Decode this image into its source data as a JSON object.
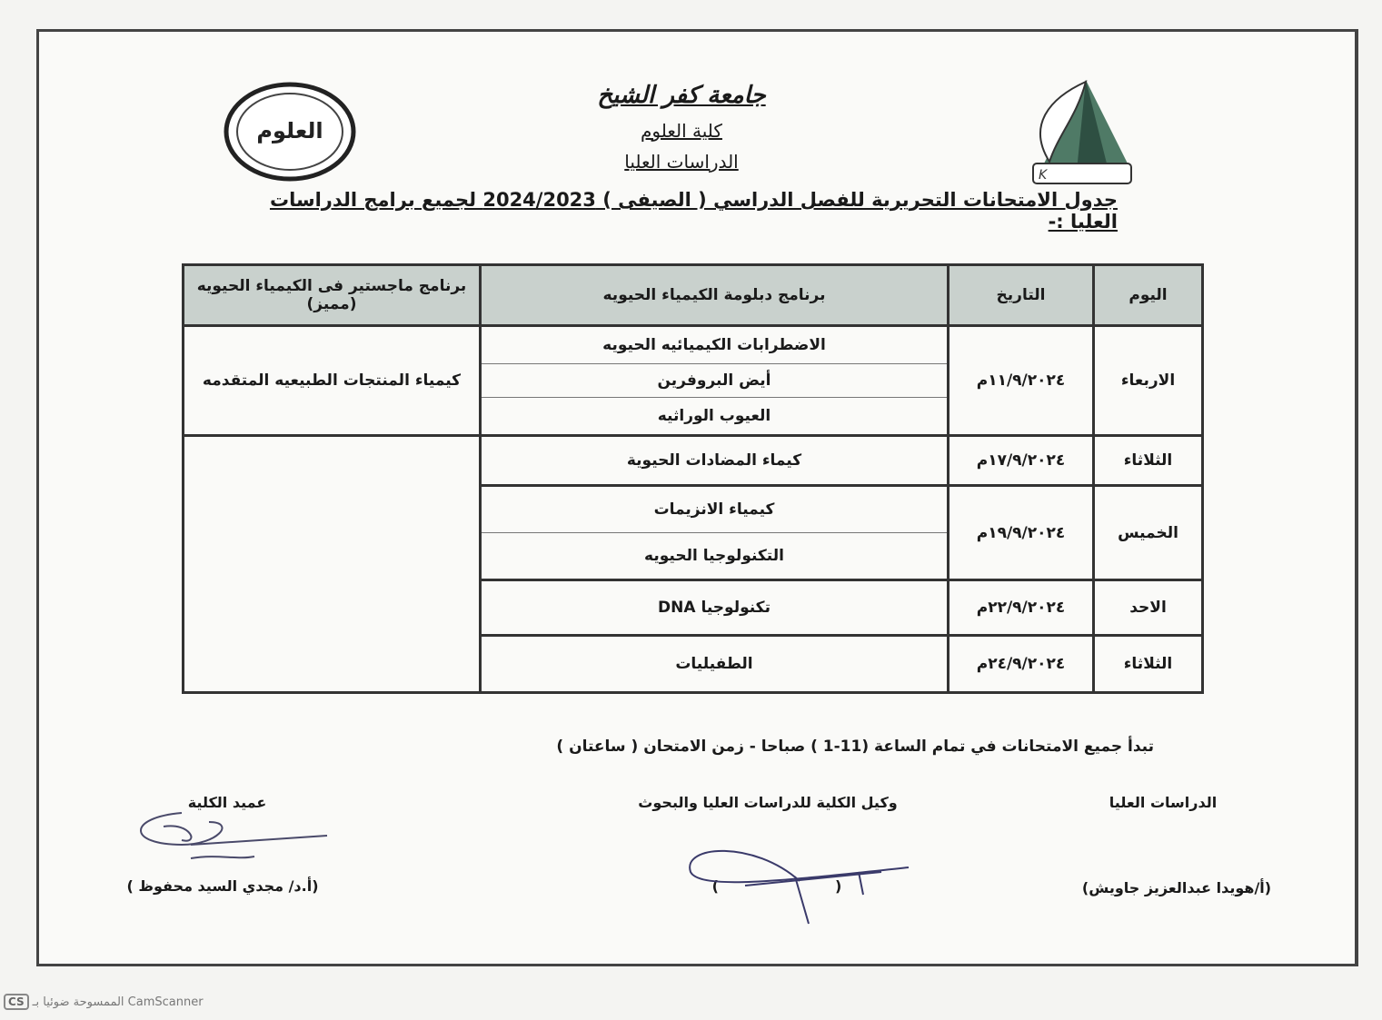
{
  "header": {
    "university": "جامعة كفر الشيخ",
    "faculty": "كلية العلوم",
    "department": "الدراسات العليا",
    "title": "جدول الامتحانات التحريرية للفصل الدراسي ( الصيفى ) 2024/2023  لجميع برامج الدراسات العليا :-",
    "logo_text": "العلوم"
  },
  "table": {
    "headers": {
      "day": "اليوم",
      "date": "التاريخ",
      "diploma": "برنامج دبلومة الكيمياء الحيويه",
      "masters": "برنامج  ماجستير فى الكيمياء الحيويه (مميز)"
    },
    "rows": [
      {
        "day": "الاربعاء",
        "date": "١١/٩/٢٠٢٤م",
        "subjects": [
          "الاضطرابات الكيميائيه الحيويه",
          "أيض البروفرين",
          "العيوب الوراثيه"
        ],
        "masters": "كيمياء المنتجات الطبيعيه المتقدمه"
      },
      {
        "day": "الثلاثاء",
        "date": "١٧/٩/٢٠٢٤م",
        "subjects": [
          "كيماء المضادات الحيوية"
        ]
      },
      {
        "day": "الخميس",
        "date": "١٩/٩/٢٠٢٤م",
        "subjects": [
          "كيمياء الانزيمات",
          "التكنولوجيا الحيويه"
        ]
      },
      {
        "day": "الاحد",
        "date": "٢٢/٩/٢٠٢٤م",
        "subjects": [
          "تكنولوجيا DNA"
        ]
      },
      {
        "day": "الثلاثاء",
        "date": "٢٤/٩/٢٠٢٤م",
        "subjects": [
          "الطفيليات"
        ]
      }
    ]
  },
  "note": "تبدأ جميع الامتحانات في تمام الساعة (11-1 )  صباحا -  زمن الامتحان ( ساعتان )",
  "signatures": {
    "right_title": "الدراسات العليا",
    "right_name": "(أ/هويدا عبدالعزيز جاويش)",
    "middle_title": "وكيل الكلية للدراسات العليا والبحوث",
    "middle_name": "(                       )",
    "left_title": "عميد الكلية",
    "left_name": "(أ.د/ مجدي السيد محفوظ )"
  },
  "watermark": {
    "badge": "CS",
    "text": "الممسوحة ضوئيا بـ CamScanner"
  }
}
